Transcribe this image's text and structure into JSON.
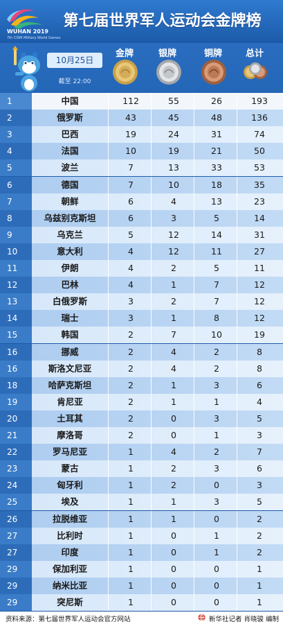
{
  "header": {
    "title": "第七届世界军人运动会金牌榜",
    "logo_text": "WUHAN 2019",
    "logo_subtext": "7th CISM Military World Games"
  },
  "columns": {
    "gold": "金牌",
    "silver": "银牌",
    "bronze": "铜牌",
    "total": "总计"
  },
  "date": {
    "label": "10月25日",
    "note": "截至 22:00"
  },
  "colors": {
    "header_blue": "#1f5fb0",
    "row_light": "#d7e8fa",
    "row_dark": "#aecdf0"
  },
  "rows": [
    {
      "rank": "1",
      "name": "中国",
      "gold": "112",
      "silver": "55",
      "bronze": "26",
      "total": "193"
    },
    {
      "rank": "2",
      "name": "俄罗斯",
      "gold": "43",
      "silver": "45",
      "bronze": "48",
      "total": "136"
    },
    {
      "rank": "3",
      "name": "巴西",
      "gold": "19",
      "silver": "24",
      "bronze": "31",
      "total": "74"
    },
    {
      "rank": "4",
      "name": "法国",
      "gold": "10",
      "silver": "19",
      "bronze": "21",
      "total": "50"
    },
    {
      "rank": "5",
      "name": "波兰",
      "gold": "7",
      "silver": "13",
      "bronze": "33",
      "total": "53"
    },
    {
      "rank": "6",
      "name": "德国",
      "gold": "7",
      "silver": "10",
      "bronze": "18",
      "total": "35"
    },
    {
      "rank": "7",
      "name": "朝鲜",
      "gold": "6",
      "silver": "4",
      "bronze": "13",
      "total": "23"
    },
    {
      "rank": "8",
      "name": "乌兹别克斯坦",
      "gold": "6",
      "silver": "3",
      "bronze": "5",
      "total": "14"
    },
    {
      "rank": "9",
      "name": "乌克兰",
      "gold": "5",
      "silver": "12",
      "bronze": "14",
      "total": "31"
    },
    {
      "rank": "10",
      "name": "意大利",
      "gold": "4",
      "silver": "12",
      "bronze": "11",
      "total": "27"
    },
    {
      "rank": "11",
      "name": "伊朗",
      "gold": "4",
      "silver": "2",
      "bronze": "5",
      "total": "11"
    },
    {
      "rank": "12",
      "name": "巴林",
      "gold": "4",
      "silver": "1",
      "bronze": "7",
      "total": "12"
    },
    {
      "rank": "13",
      "name": "白俄罗斯",
      "gold": "3",
      "silver": "2",
      "bronze": "7",
      "total": "12"
    },
    {
      "rank": "14",
      "name": "瑞士",
      "gold": "3",
      "silver": "1",
      "bronze": "8",
      "total": "12"
    },
    {
      "rank": "15",
      "name": "韩国",
      "gold": "2",
      "silver": "7",
      "bronze": "10",
      "total": "19"
    },
    {
      "rank": "16",
      "name": "挪威",
      "gold": "2",
      "silver": "4",
      "bronze": "2",
      "total": "8"
    },
    {
      "rank": "16",
      "name": "斯洛文尼亚",
      "gold": "2",
      "silver": "4",
      "bronze": "2",
      "total": "8"
    },
    {
      "rank": "18",
      "name": "哈萨克斯坦",
      "gold": "2",
      "silver": "1",
      "bronze": "3",
      "total": "6"
    },
    {
      "rank": "19",
      "name": "肯尼亚",
      "gold": "2",
      "silver": "1",
      "bronze": "1",
      "total": "4"
    },
    {
      "rank": "20",
      "name": "土耳其",
      "gold": "2",
      "silver": "0",
      "bronze": "3",
      "total": "5"
    },
    {
      "rank": "21",
      "name": "摩洛哥",
      "gold": "2",
      "silver": "0",
      "bronze": "1",
      "total": "3"
    },
    {
      "rank": "22",
      "name": "罗马尼亚",
      "gold": "1",
      "silver": "4",
      "bronze": "2",
      "total": "7"
    },
    {
      "rank": "23",
      "name": "蒙古",
      "gold": "1",
      "silver": "2",
      "bronze": "3",
      "total": "6"
    },
    {
      "rank": "24",
      "name": "匈牙利",
      "gold": "1",
      "silver": "2",
      "bronze": "0",
      "total": "3"
    },
    {
      "rank": "25",
      "name": "埃及",
      "gold": "1",
      "silver": "1",
      "bronze": "3",
      "total": "5"
    },
    {
      "rank": "26",
      "name": "拉脱维亚",
      "gold": "1",
      "silver": "1",
      "bronze": "0",
      "total": "2"
    },
    {
      "rank": "27",
      "name": "比利时",
      "gold": "1",
      "silver": "0",
      "bronze": "1",
      "total": "2"
    },
    {
      "rank": "27",
      "name": "印度",
      "gold": "1",
      "silver": "0",
      "bronze": "1",
      "total": "2"
    },
    {
      "rank": "29",
      "name": "保加利亚",
      "gold": "1",
      "silver": "0",
      "bronze": "0",
      "total": "1"
    },
    {
      "rank": "29",
      "name": "纳米比亚",
      "gold": "1",
      "silver": "0",
      "bronze": "0",
      "total": "1"
    },
    {
      "rank": "29",
      "name": "突尼斯",
      "gold": "1",
      "silver": "0",
      "bronze": "0",
      "total": "1"
    }
  ],
  "footer": {
    "source": "资料来源：第七届世界军人运动会官方网站",
    "credit": "新华社记者 肖晓骏 编制",
    "credit_icon": "xinhua-globe-icon"
  }
}
